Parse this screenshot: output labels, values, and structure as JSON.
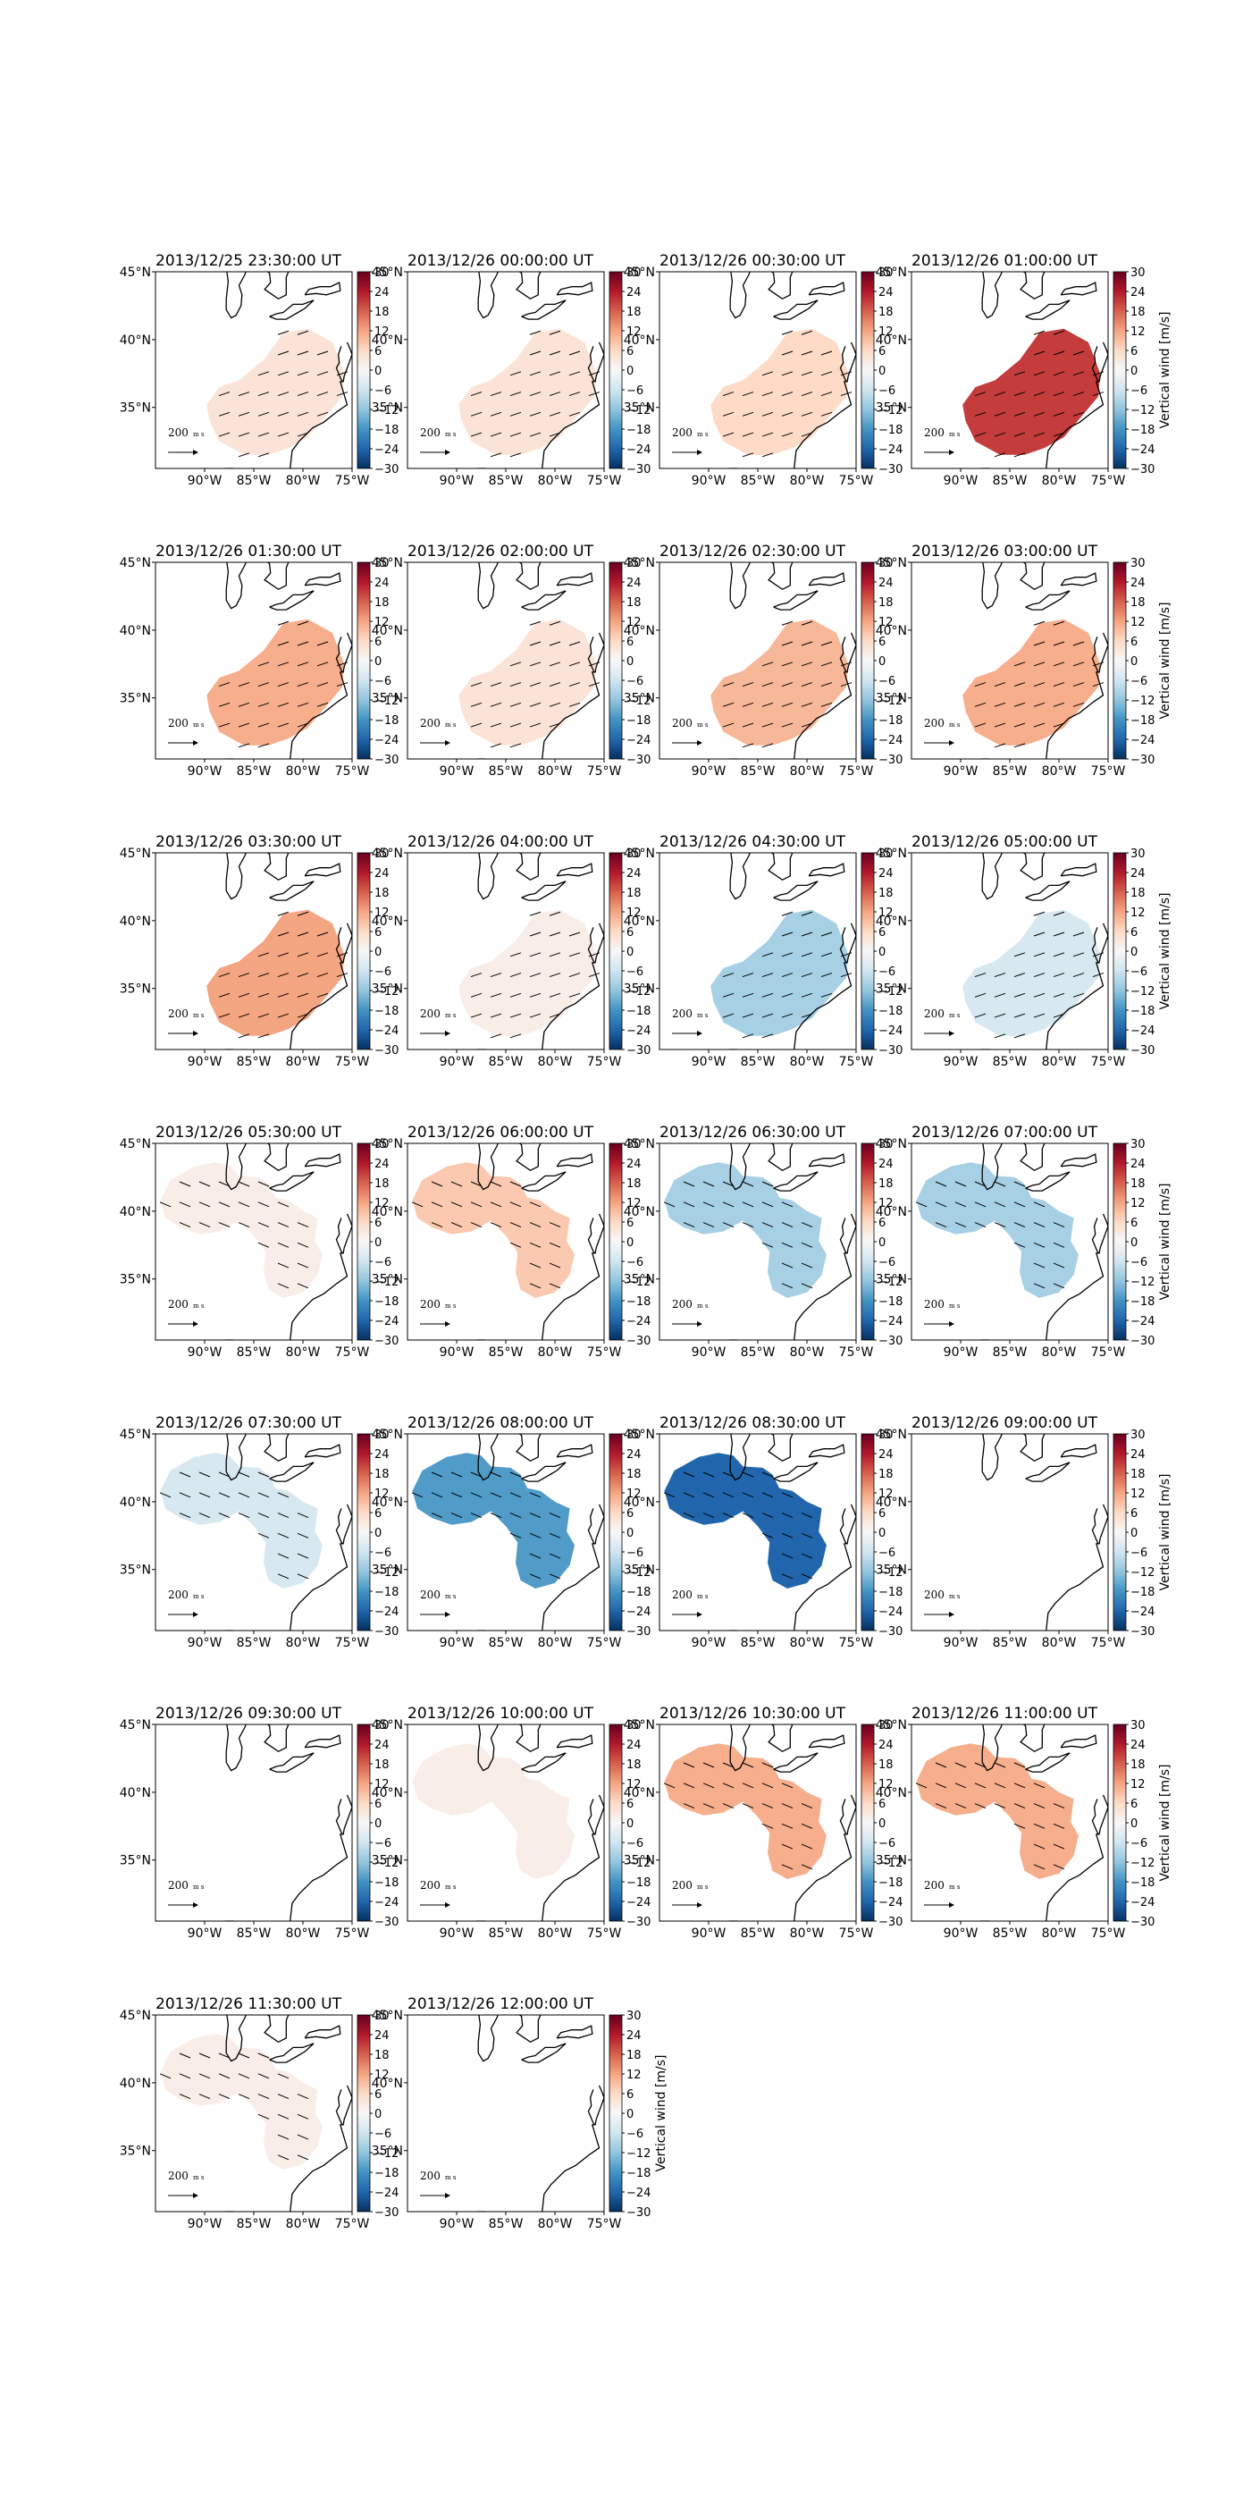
{
  "figure": {
    "map_extent": {
      "lon_min": -95,
      "lon_max": -75,
      "lat_min": 30.5,
      "lat_max": 45
    },
    "lat_ticks": [
      "45°N",
      "40°N",
      "35°N"
    ],
    "lon_ticks": [
      "90°W",
      "85°W",
      "80°W",
      "75°W"
    ],
    "colorbar": {
      "label": "Vertical wind [m/s]",
      "ticks": [
        "30",
        "24",
        "18",
        "12",
        "6",
        "0",
        "−6",
        "−12",
        "−18",
        "−24",
        "−30"
      ],
      "vmin": -30,
      "vmax": 30,
      "colormap": "RdBu_r"
    },
    "scale_label": "200",
    "scale_unit": "m s",
    "colors": {
      "coast": "#000000",
      "arrow": "#000000"
    }
  },
  "panels": [
    {
      "title": "2013/12/25 23:30:00 UT",
      "value": 4,
      "region": "southeast",
      "arrows": true
    },
    {
      "title": "2013/12/26 00:00:00 UT",
      "value": 4,
      "region": "southeast",
      "arrows": true
    },
    {
      "title": "2013/12/26 00:30:00 UT",
      "value": 6,
      "region": "southeast",
      "arrows": true
    },
    {
      "title": "2013/12/26 01:00:00 UT",
      "value": 21,
      "region": "southeast",
      "arrows": true
    },
    {
      "title": "2013/12/26 01:30:00 UT",
      "value": 11,
      "region": "southeast",
      "arrows": true
    },
    {
      "title": "2013/12/26 02:00:00 UT",
      "value": 4,
      "region": "southeast",
      "arrows": true
    },
    {
      "title": "2013/12/26 02:30:00 UT",
      "value": 10,
      "region": "southeast",
      "arrows": true
    },
    {
      "title": "2013/12/26 03:00:00 UT",
      "value": 11,
      "region": "southeast",
      "arrows": true
    },
    {
      "title": "2013/12/26 03:30:00 UT",
      "value": 12,
      "region": "southeast",
      "arrows": true
    },
    {
      "title": "2013/12/26 04:00:00 UT",
      "value": 2,
      "region": "southeast",
      "arrows": true
    },
    {
      "title": "2013/12/26 04:30:00 UT",
      "value": -10,
      "region": "southeast",
      "arrows": true
    },
    {
      "title": "2013/12/26 05:00:00 UT",
      "value": -5,
      "region": "southeast",
      "arrows": true
    },
    {
      "title": "2013/12/26 05:30:00 UT",
      "value": 2,
      "region": "wide",
      "arrows": true
    },
    {
      "title": "2013/12/26 06:00:00 UT",
      "value": 8,
      "region": "wide",
      "arrows": true
    },
    {
      "title": "2013/12/26 06:30:00 UT",
      "value": -10,
      "region": "wide",
      "arrows": true
    },
    {
      "title": "2013/12/26 07:00:00 UT",
      "value": -10,
      "region": "wide",
      "arrows": true
    },
    {
      "title": "2013/12/26 07:30:00 UT",
      "value": -5,
      "region": "wide",
      "arrows": true
    },
    {
      "title": "2013/12/26 08:00:00 UT",
      "value": -17,
      "region": "wide",
      "arrows": true
    },
    {
      "title": "2013/12/26 08:30:00 UT",
      "value": -24,
      "region": "wide",
      "arrows": true
    },
    {
      "title": "2013/12/26 09:00:00 UT",
      "value": null,
      "region": "none",
      "arrows": false
    },
    {
      "title": "2013/12/26 09:30:00 UT",
      "value": null,
      "region": "none",
      "arrows": false
    },
    {
      "title": "2013/12/26 10:00:00 UT",
      "value": 2,
      "region": "wide",
      "arrows": false
    },
    {
      "title": "2013/12/26 10:30:00 UT",
      "value": 11,
      "region": "wide",
      "arrows": true
    },
    {
      "title": "2013/12/26 11:00:00 UT",
      "value": 11,
      "region": "wide",
      "arrows": true
    },
    {
      "title": "2013/12/26 11:30:00 UT",
      "value": 2,
      "region": "wide",
      "arrows": true
    },
    {
      "title": "2013/12/26 12:00:00 UT",
      "value": null,
      "region": "none",
      "arrows": false
    }
  ]
}
